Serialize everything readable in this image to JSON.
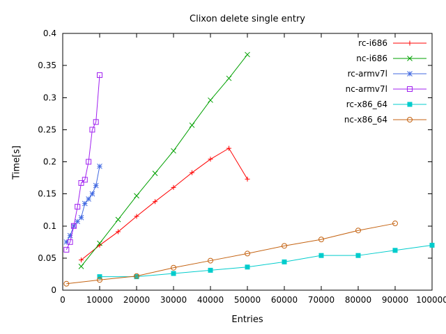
{
  "title": "Clixon delete single entry",
  "chart_data": {
    "type": "line",
    "title": "Clixon delete single entry",
    "xlabel": "Entries",
    "ylabel": "Time[s]",
    "xlim": [
      0,
      100000
    ],
    "ylim": [
      0,
      0.4
    ],
    "xticks": [
      0,
      10000,
      20000,
      30000,
      40000,
      50000,
      60000,
      70000,
      80000,
      90000,
      100000
    ],
    "yticks": [
      0,
      0.05,
      0.1,
      0.15,
      0.2,
      0.25,
      0.3,
      0.35,
      0.4
    ],
    "grid": false,
    "legend_position": "top-right-inside",
    "series": [
      {
        "name": "rc-i686",
        "color": "#ff0000",
        "marker": "plus",
        "points": [
          [
            5000,
            0.047
          ],
          [
            10000,
            0.07
          ],
          [
            15000,
            0.091
          ],
          [
            20000,
            0.115
          ],
          [
            25000,
            0.138
          ],
          [
            30000,
            0.16
          ],
          [
            35000,
            0.183
          ],
          [
            40000,
            0.204
          ],
          [
            45000,
            0.221
          ],
          [
            50000,
            0.173
          ]
        ]
      },
      {
        "name": "nc-i686",
        "color": "#00a000",
        "marker": "cross",
        "points": [
          [
            5000,
            0.037
          ],
          [
            10000,
            0.073
          ],
          [
            15000,
            0.11
          ],
          [
            20000,
            0.147
          ],
          [
            25000,
            0.182
          ],
          [
            30000,
            0.217
          ],
          [
            35000,
            0.257
          ],
          [
            40000,
            0.296
          ],
          [
            45000,
            0.33
          ],
          [
            50000,
            0.367
          ]
        ]
      },
      {
        "name": "rc-armv7l",
        "color": "#4169e1",
        "marker": "asterisk",
        "points": [
          [
            1000,
            0.075
          ],
          [
            2000,
            0.085
          ],
          [
            3000,
            0.1
          ],
          [
            4000,
            0.107
          ],
          [
            5000,
            0.113
          ],
          [
            6000,
            0.135
          ],
          [
            7000,
            0.142
          ],
          [
            8000,
            0.15
          ],
          [
            9000,
            0.163
          ],
          [
            10000,
            0.193
          ]
        ]
      },
      {
        "name": "nc-armv7l",
        "color": "#a020f0",
        "marker": "square-open",
        "points": [
          [
            1000,
            0.063
          ],
          [
            2000,
            0.075
          ],
          [
            3000,
            0.1
          ],
          [
            4000,
            0.13
          ],
          [
            5000,
            0.167
          ],
          [
            6000,
            0.172
          ],
          [
            7000,
            0.2
          ],
          [
            8000,
            0.25
          ],
          [
            9000,
            0.262
          ],
          [
            10000,
            0.335
          ]
        ]
      },
      {
        "name": "rc-x86_64",
        "color": "#00cccc",
        "marker": "square-filled",
        "points": [
          [
            10000,
            0.021
          ],
          [
            20000,
            0.021
          ],
          [
            30000,
            0.026
          ],
          [
            40000,
            0.031
          ],
          [
            50000,
            0.036
          ],
          [
            60000,
            0.044
          ],
          [
            70000,
            0.054
          ],
          [
            80000,
            0.054
          ],
          [
            90000,
            0.062
          ],
          [
            100000,
            0.07
          ]
        ]
      },
      {
        "name": "nc-x86_64",
        "color": "#c46210",
        "marker": "circle-open",
        "points": [
          [
            1000,
            0.01
          ],
          [
            10000,
            0.016
          ],
          [
            20000,
            0.022
          ],
          [
            30000,
            0.035
          ],
          [
            40000,
            0.046
          ],
          [
            50000,
            0.057
          ],
          [
            60000,
            0.069
          ],
          [
            70000,
            0.079
          ],
          [
            80000,
            0.093
          ],
          [
            90000,
            0.104
          ]
        ]
      }
    ]
  }
}
